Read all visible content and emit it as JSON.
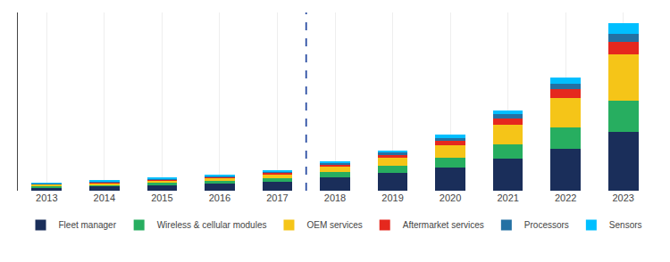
{
  "chart_data": {
    "type": "bar",
    "stacked": true,
    "categories": [
      "2013",
      "2014",
      "2015",
      "2016",
      "2017",
      "2018",
      "2019",
      "2020",
      "2021",
      "2022",
      "2023"
    ],
    "series": [
      {
        "name": "Fleet manager",
        "color": "#1a2e5a",
        "values": [
          0.55,
          0.7,
          0.9,
          1.1,
          1.4,
          2.2,
          2.9,
          3.8,
          5.2,
          6.8,
          9.5
        ]
      },
      {
        "name": "Wireless & cellular modules",
        "color": "#27ae60",
        "values": [
          0.25,
          0.3,
          0.38,
          0.48,
          0.65,
          0.8,
          1.1,
          1.6,
          2.4,
          3.5,
          5.2
        ]
      },
      {
        "name": "OEM services",
        "color": "#f5c518",
        "values": [
          0.22,
          0.27,
          0.34,
          0.45,
          0.58,
          0.9,
          1.3,
          2.0,
          3.2,
          4.8,
          7.5
        ]
      },
      {
        "name": "Aftermarket services",
        "color": "#e5281e",
        "values": [
          0.12,
          0.15,
          0.19,
          0.24,
          0.3,
          0.38,
          0.55,
          0.75,
          1.0,
          1.4,
          2.0
        ]
      },
      {
        "name": "Processors",
        "color": "#2471a3",
        "values": [
          0.08,
          0.1,
          0.12,
          0.16,
          0.2,
          0.26,
          0.34,
          0.46,
          0.62,
          0.9,
          1.3
        ]
      },
      {
        "name": "Sensors",
        "color": "#00bfff",
        "values": [
          0.08,
          0.1,
          0.13,
          0.17,
          0.22,
          0.28,
          0.37,
          0.49,
          0.66,
          0.95,
          1.8
        ]
      }
    ],
    "ylim": [
      0,
      29
    ],
    "yticks": [],
    "tick_labels": "x",
    "grid": true,
    "legend": "bottom",
    "reference_line": {
      "between": [
        "2017",
        "2018"
      ],
      "color": "#2c4fa3",
      "line_style": "dashed"
    }
  }
}
